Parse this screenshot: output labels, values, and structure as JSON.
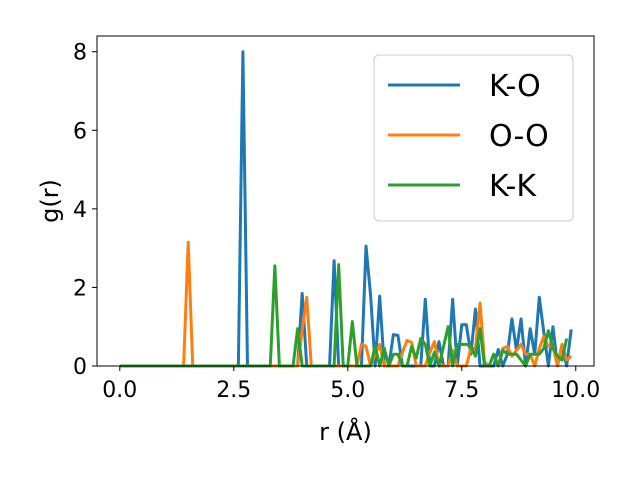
{
  "chart_data": {
    "type": "line",
    "xlabel": "r (Å)",
    "ylabel": "g(r)",
    "xlim": [
      -0.5,
      10.4
    ],
    "ylim": [
      0,
      8.4
    ],
    "xticks": [
      0.0,
      2.5,
      5.0,
      7.5,
      10.0
    ],
    "xtick_labels": [
      "0.0",
      "2.5",
      "5.0",
      "7.5",
      "10.0"
    ],
    "yticks": [
      0,
      2,
      4,
      6,
      8
    ],
    "ytick_labels": [
      "0",
      "2",
      "4",
      "6",
      "8"
    ],
    "grid": false,
    "legend_position": "top-right",
    "series": [
      {
        "name": "K-O",
        "color": "#1f77b4",
        "x": [
          0.0,
          2.5,
          2.6,
          2.7,
          2.8,
          2.9,
          3.0,
          3.8,
          3.9,
          4.0,
          4.1,
          4.2,
          4.6,
          4.7,
          4.8,
          4.9,
          5.3,
          5.4,
          5.5,
          5.6,
          5.7,
          5.8,
          5.9,
          6.0,
          6.1,
          6.2,
          6.3,
          6.5,
          6.6,
          6.7,
          6.8,
          6.9,
          7.0,
          7.1,
          7.2,
          7.3,
          7.4,
          7.5,
          7.6,
          7.7,
          7.8,
          7.9,
          8.0,
          8.1,
          8.2,
          8.3,
          8.4,
          8.5,
          8.6,
          8.7,
          8.8,
          8.9,
          9.0,
          9.1,
          9.2,
          9.3,
          9.4,
          9.5,
          9.6,
          9.7,
          9.8,
          9.9
        ],
        "y": [
          0,
          0,
          0,
          8.0,
          0,
          0,
          0,
          0,
          0,
          1.85,
          0,
          0,
          0,
          2.68,
          0,
          0,
          0,
          3.05,
          1.8,
          0,
          1.78,
          0,
          0,
          0.8,
          0.78,
          0,
          0,
          0,
          0,
          1.7,
          0,
          0,
          0.62,
          0,
          0,
          1.7,
          0,
          1.05,
          1.05,
          0.3,
          1.45,
          0,
          0,
          0,
          0,
          0.42,
          0,
          0.3,
          1.2,
          0.4,
          1.2,
          0,
          0.95,
          0.3,
          1.75,
          0.85,
          0,
          1.0,
          0,
          0.55,
          0,
          0.93
        ]
      },
      {
        "name": "O-O",
        "color": "#ff7f0e",
        "x": [
          0.0,
          1.4,
          1.5,
          1.6,
          1.7,
          3.9,
          4.0,
          4.1,
          4.2,
          5.2,
          5.3,
          5.4,
          5.5,
          5.6,
          5.7,
          5.8,
          6.1,
          6.2,
          6.3,
          6.4,
          6.5,
          6.7,
          6.8,
          6.9,
          7.0,
          7.2,
          7.3,
          7.4,
          7.6,
          7.7,
          7.8,
          7.9,
          8.0,
          8.1,
          8.2,
          8.3,
          8.4,
          8.5,
          8.6,
          8.7,
          8.8,
          8.9,
          9.0,
          9.1,
          9.2,
          9.3,
          9.4,
          9.5,
          9.6,
          9.7,
          9.8,
          9.9
        ],
        "y": [
          0,
          0,
          3.15,
          0,
          0,
          0,
          0.9,
          1.75,
          0,
          0,
          0.55,
          0.5,
          0,
          0.3,
          0.55,
          0,
          0,
          0.35,
          0.65,
          0.6,
          0,
          0,
          0.35,
          0.62,
          0,
          0,
          0.4,
          0,
          0,
          0.45,
          0.45,
          1.6,
          0.1,
          0,
          0.3,
          0,
          0.45,
          0.5,
          0.25,
          0.4,
          0.55,
          0.3,
          0.3,
          0,
          0.45,
          0.75,
          0.5,
          0.5,
          0,
          0.55,
          0.15,
          0.25
        ]
      },
      {
        "name": "K-K",
        "color": "#2ca02c",
        "x": [
          0.0,
          3.2,
          3.3,
          3.4,
          3.5,
          3.6,
          3.8,
          3.9,
          4.0,
          4.6,
          4.7,
          4.8,
          4.9,
          5.0,
          5.1,
          5.2,
          5.5,
          5.6,
          5.7,
          5.8,
          5.9,
          6.0,
          6.1,
          6.2,
          6.3,
          6.4,
          6.5,
          6.6,
          6.7,
          6.8,
          6.9,
          7.0,
          7.1,
          7.2,
          7.3,
          7.4,
          7.5,
          7.6,
          7.7,
          7.8,
          7.9,
          8.0,
          8.1,
          8.2,
          8.3,
          8.4,
          8.5,
          8.6,
          8.7,
          8.8,
          8.9,
          9.0,
          9.1,
          9.2,
          9.3,
          9.4,
          9.5,
          9.6,
          9.7,
          9.8
        ],
        "y": [
          0,
          0,
          0,
          2.55,
          0,
          0,
          0,
          0.95,
          0,
          0,
          0,
          2.58,
          0,
          0,
          1.13,
          0,
          0,
          0.5,
          0,
          0.45,
          0,
          0.3,
          0.3,
          0,
          0,
          0.5,
          0.2,
          0.7,
          0.55,
          0,
          0.35,
          0,
          0.5,
          1.0,
          0,
          0.55,
          0.55,
          0.55,
          0.5,
          0.25,
          0.95,
          0,
          0,
          0.3,
          0,
          0.4,
          0.3,
          0.3,
          0.3,
          0.15,
          0,
          0.3,
          0.3,
          0.3,
          0.45,
          0.9,
          0.45,
          0.25,
          0.15,
          0.7
        ]
      }
    ]
  }
}
